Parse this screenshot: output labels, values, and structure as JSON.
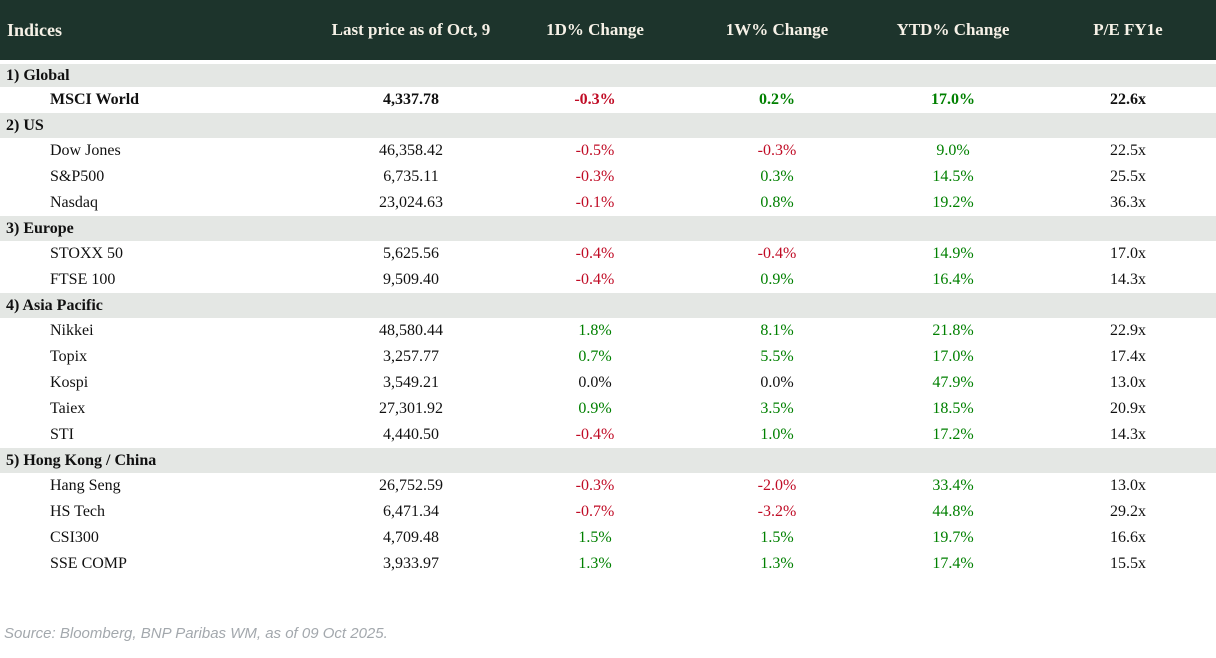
{
  "table": {
    "title": "Indices",
    "columns": [
      "Last price as of Oct, 9",
      "1D% Change",
      "1W% Change",
      "YTD% Change",
      "P/E FY1e"
    ],
    "sections": [
      {
        "label": "1) Global",
        "rows": [
          {
            "name": "MSCI World",
            "price": "4,337.78",
            "d1": "-0.3%",
            "w1": "0.2%",
            "ytd": "17.0%",
            "pe": "22.6x",
            "bold": true
          }
        ]
      },
      {
        "label": "2) US",
        "rows": [
          {
            "name": "Dow Jones",
            "price": "46,358.42",
            "d1": "-0.5%",
            "w1": "-0.3%",
            "ytd": "9.0%",
            "pe": "22.5x",
            "bold": false
          },
          {
            "name": "S&P500",
            "price": "6,735.11",
            "d1": "-0.3%",
            "w1": "0.3%",
            "ytd": "14.5%",
            "pe": "25.5x",
            "bold": false
          },
          {
            "name": "Nasdaq",
            "price": "23,024.63",
            "d1": "-0.1%",
            "w1": "0.8%",
            "ytd": "19.2%",
            "pe": "36.3x",
            "bold": false
          }
        ]
      },
      {
        "label": "3) Europe",
        "rows": [
          {
            "name": "STOXX 50",
            "price": "5,625.56",
            "d1": "-0.4%",
            "w1": "-0.4%",
            "ytd": "14.9%",
            "pe": "17.0x",
            "bold": false
          },
          {
            "name": "FTSE 100",
            "price": "9,509.40",
            "d1": "-0.4%",
            "w1": "0.9%",
            "ytd": "16.4%",
            "pe": "14.3x",
            "bold": false
          }
        ]
      },
      {
        "label": "4) Asia Pacific",
        "rows": [
          {
            "name": "Nikkei",
            "price": "48,580.44",
            "d1": "1.8%",
            "w1": "8.1%",
            "ytd": "21.8%",
            "pe": "22.9x",
            "bold": false
          },
          {
            "name": "Topix",
            "price": "3,257.77",
            "d1": "0.7%",
            "w1": "5.5%",
            "ytd": "17.0%",
            "pe": "17.4x",
            "bold": false
          },
          {
            "name": "Kospi",
            "price": "3,549.21",
            "d1": "0.0%",
            "w1": "0.0%",
            "ytd": "47.9%",
            "pe": "13.0x",
            "bold": false
          },
          {
            "name": "Taiex",
            "price": "27,301.92",
            "d1": "0.9%",
            "w1": "3.5%",
            "ytd": "18.5%",
            "pe": "20.9x",
            "bold": false
          },
          {
            "name": "STI",
            "price": "4,440.50",
            "d1": "-0.4%",
            "w1": "1.0%",
            "ytd": "17.2%",
            "pe": "14.3x",
            "bold": false
          }
        ]
      },
      {
        "label": "5) Hong Kong / China",
        "rows": [
          {
            "name": "Hang Seng",
            "price": "26,752.59",
            "d1": "-0.3%",
            "w1": "-2.0%",
            "ytd": "33.4%",
            "pe": "13.0x",
            "bold": false
          },
          {
            "name": "HS Tech",
            "price": "6,471.34",
            "d1": "-0.7%",
            "w1": "-3.2%",
            "ytd": "44.8%",
            "pe": "29.2x",
            "bold": false
          },
          {
            "name": "CSI300",
            "price": "4,709.48",
            "d1": "1.5%",
            "w1": "1.5%",
            "ytd": "19.7%",
            "pe": "16.6x",
            "bold": false
          },
          {
            "name": "SSE COMP",
            "price": "3,933.97",
            "d1": "1.3%",
            "w1": "1.3%",
            "ytd": "17.4%",
            "pe": "15.5x",
            "bold": false
          }
        ]
      }
    ]
  },
  "footer": {
    "source": "Source: Bloomberg, BNP Paribas WM, as of 09 Oct 2025."
  },
  "colors": {
    "header_bg": "#1d342c",
    "header_text": "#f6f1e7",
    "section_bg": "#e4e7e4",
    "negative": "#c00b25",
    "positive": "#008000",
    "neutral_text": "#111111",
    "source_text": "#a3a8ad"
  }
}
